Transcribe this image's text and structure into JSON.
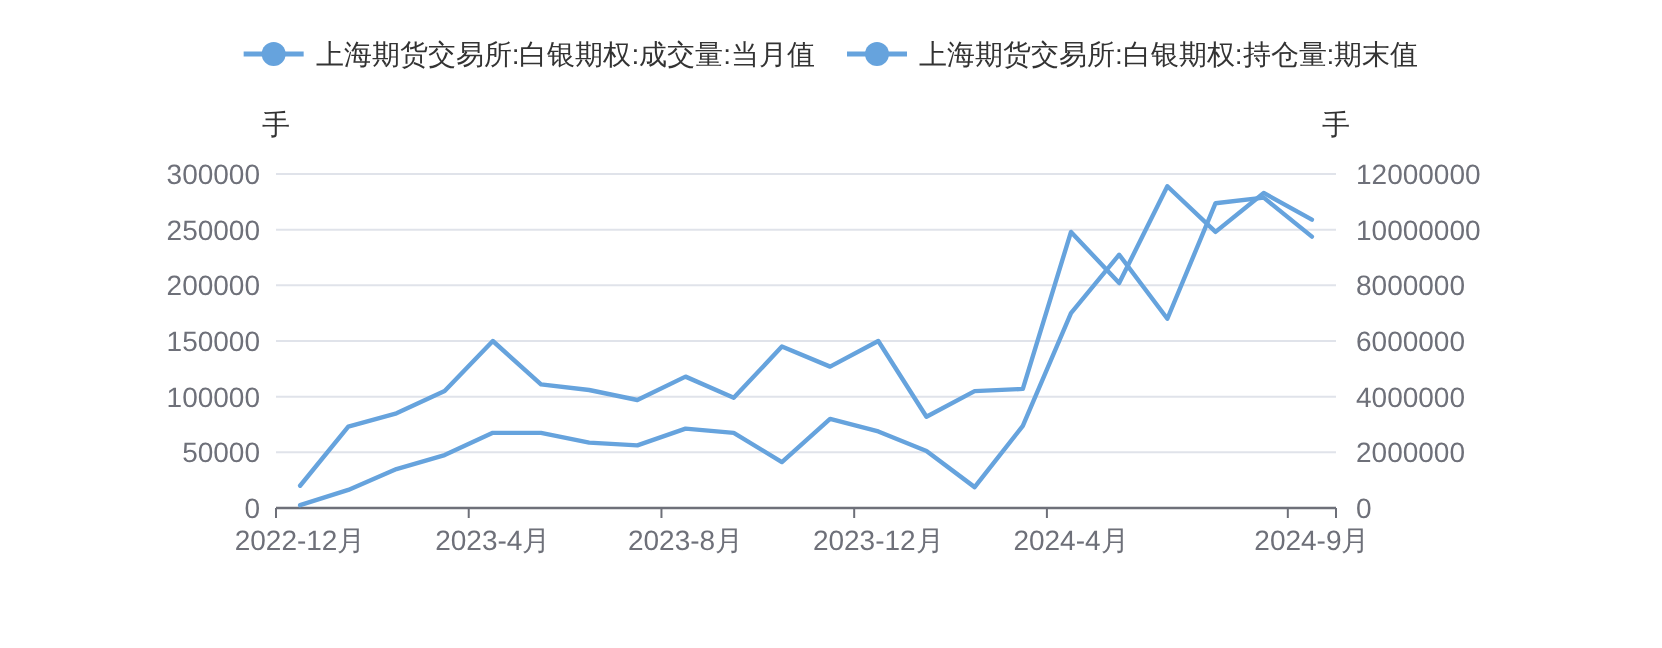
{
  "chart_data": {
    "type": "line",
    "categories": [
      "2022-12月",
      null,
      null,
      null,
      "2023-4月",
      null,
      null,
      null,
      "2023-8月",
      null,
      null,
      null,
      "2023-12月",
      null,
      null,
      null,
      "2024-4月",
      null,
      null,
      null,
      null,
      "2024-9月"
    ],
    "ylabel": "手",
    "y2label": "手",
    "ylim": [
      0,
      300000
    ],
    "yticks": [
      0,
      50000,
      100000,
      150000,
      200000,
      250000,
      300000
    ],
    "y2lim": [
      0,
      12000000
    ],
    "y2ticks": [
      0,
      2000000,
      4000000,
      6000000,
      8000000,
      10000000,
      12000000
    ],
    "grid": "y",
    "legend": "top",
    "marker": "none",
    "line_style": "solid",
    "series": [
      {
        "name": "上海期货交易所:白银期权:成交量:当月值",
        "color": "#66a3dd",
        "axis": "y2",
        "values": [
          100000,
          650000,
          1400000,
          1900000,
          2700000,
          2700000,
          2350000,
          2250000,
          2850000,
          2700000,
          1650000,
          3200000,
          2750000,
          2050000,
          750000,
          2950000,
          7000000,
          9100000,
          6800000,
          10950000,
          11150000,
          9750000
        ]
      },
      {
        "name": "上海期货交易所:白银期权:持仓量:期末值",
        "color": "#66a3dd",
        "values": [
          20000,
          73000,
          85000,
          105000,
          150000,
          111000,
          106000,
          97000,
          118000,
          99000,
          145000,
          127000,
          150000,
          82000,
          105000,
          107000,
          248000,
          202000,
          289000,
          248000,
          283000,
          259000
        ]
      }
    ]
  }
}
